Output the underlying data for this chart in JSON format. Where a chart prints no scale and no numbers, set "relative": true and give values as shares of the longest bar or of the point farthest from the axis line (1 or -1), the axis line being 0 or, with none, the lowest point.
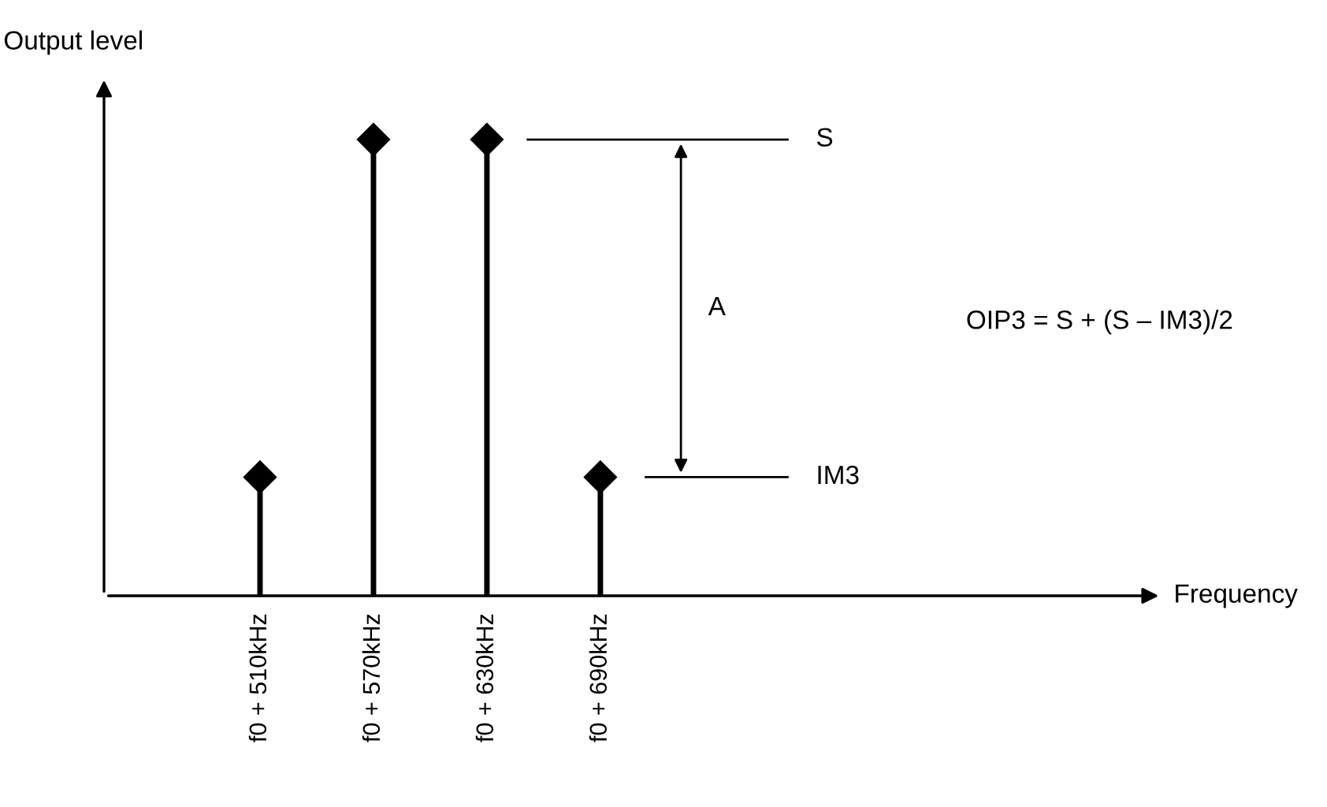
{
  "chart_data": {
    "type": "lollipop",
    "ylabel": "Output level",
    "relative": true,
    "categories": [
      "f0 + 510kHz",
      "f0 + 570kHz",
      "f0 + 630kHz",
      "f0 + 690kHz"
    ],
    "series": [
      {
        "color": "#000000",
        "values": [
          0.26,
          1,
          1,
          0.26
        ]
      }
    ],
    "marker": "diamond",
    "ref_lines": [
      {
        "axis": "y",
        "value": 1,
        "label": "S",
        "color": "#000000"
      },
      {
        "axis": "y",
        "value": 0.26,
        "label": "IM3",
        "color": "#000000"
      }
    ],
    "annotations": [
      "A",
      "OIP3 = S + (S – IM3)/2",
      "Frequency"
    ]
  }
}
